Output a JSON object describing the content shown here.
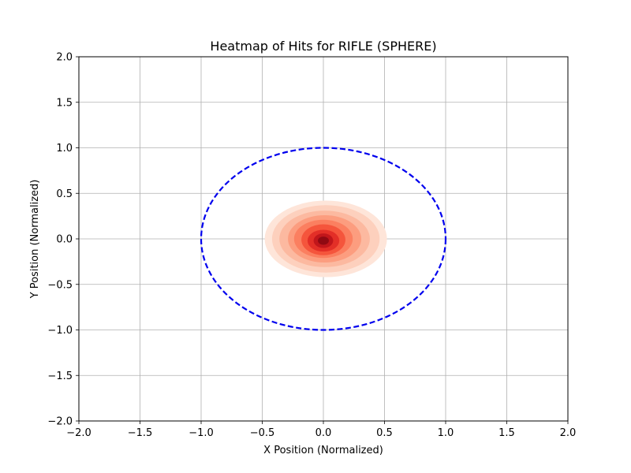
{
  "chart_data": {
    "type": "heatmap",
    "title": "Heatmap of Hits for RIFLE (SPHERE)",
    "xlabel": "X Position (Normalized)",
    "ylabel": "Y Position (Normalized)",
    "xlim": [
      -2.0,
      2.0
    ],
    "ylim": [
      -2.0,
      2.0
    ],
    "grid": true,
    "x_ticks": [
      -2.0,
      -1.5,
      -1.0,
      -0.5,
      0.0,
      0.5,
      1.0,
      1.5,
      2.0
    ],
    "y_ticks": [
      -2.0,
      -1.5,
      -1.0,
      -0.5,
      0.0,
      0.5,
      1.0,
      1.5,
      2.0
    ],
    "x_tick_labels": [
      "−2.0",
      "−1.5",
      "−1.0",
      "−0.5",
      "0.0",
      "0.5",
      "1.0",
      "1.5",
      "2.0"
    ],
    "y_tick_labels": [
      "−2.0",
      "−1.5",
      "−1.0",
      "−0.5",
      "0.0",
      "0.5",
      "1.0",
      "1.5",
      "2.0"
    ],
    "boundary": {
      "shape": "circle",
      "center": [
        0.0,
        0.0
      ],
      "radius": 1.0,
      "style": "dashed",
      "color": "#0000ee"
    },
    "density": {
      "colormap": "Reds",
      "peak": [
        0.0,
        -0.02
      ],
      "levels": [
        {
          "rx": 0.5,
          "ry": 0.42,
          "cx": 0.02,
          "cy": 0.0,
          "color": "#fee5d9"
        },
        {
          "rx": 0.44,
          "ry": 0.37,
          "cx": 0.02,
          "cy": 0.0,
          "color": "#fdd0bd"
        },
        {
          "rx": 0.37,
          "ry": 0.31,
          "cx": 0.01,
          "cy": 0.0,
          "color": "#fcb9a0"
        },
        {
          "rx": 0.3,
          "ry": 0.26,
          "cx": 0.01,
          "cy": 0.0,
          "color": "#fc9d7f"
        },
        {
          "rx": 0.24,
          "ry": 0.21,
          "cx": 0.0,
          "cy": 0.0,
          "color": "#fb7f60"
        },
        {
          "rx": 0.18,
          "ry": 0.17,
          "cx": 0.0,
          "cy": -0.01,
          "color": "#f5553c"
        },
        {
          "rx": 0.13,
          "ry": 0.12,
          "cx": 0.0,
          "cy": -0.02,
          "color": "#e32f27"
        },
        {
          "rx": 0.08,
          "ry": 0.08,
          "cx": 0.0,
          "cy": -0.02,
          "color": "#c1161b"
        },
        {
          "rx": 0.045,
          "ry": 0.045,
          "cx": 0.0,
          "cy": -0.02,
          "color": "#8f0912"
        }
      ]
    }
  }
}
